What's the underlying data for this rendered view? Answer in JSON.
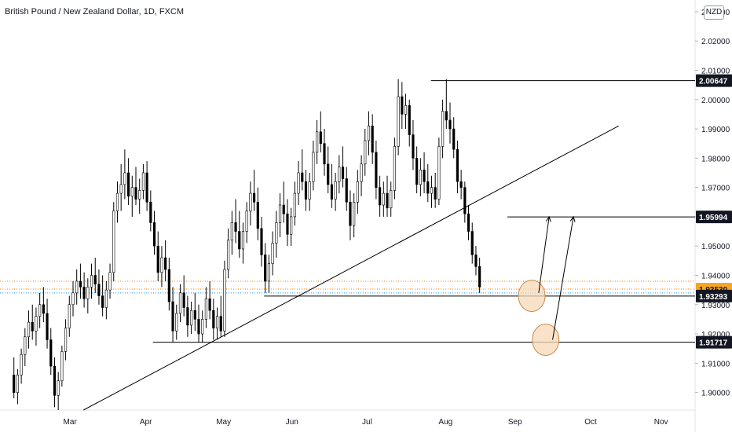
{
  "header": {
    "title": "British Pound / New Zealand Dollar, 1D, FXCM",
    "currency": "NZD"
  },
  "chart_data": {
    "type": "candlestick",
    "title": "British Pound / New Zealand Dollar, 1D, FXCM",
    "y_axis": {
      "range": [
        1.894,
        2.034
      ],
      "ticks": [
        "1.90000",
        "1.91000",
        "1.92000",
        "1.93000",
        "1.94000",
        "1.95000",
        "1.96000",
        "1.97000",
        "1.98000",
        "1.99000",
        "2.00000",
        "2.01000",
        "2.02000",
        "2.03000"
      ],
      "tick_values": [
        1.9,
        1.91,
        1.92,
        1.93,
        1.94,
        1.95,
        1.96,
        1.97,
        1.98,
        1.99,
        2.0,
        2.01,
        2.02,
        2.03
      ]
    },
    "x_axis": {
      "months": [
        "Mar",
        "Apr",
        "May",
        "Jun",
        "Jul",
        "Aug",
        "Sep",
        "Oct",
        "Nov"
      ],
      "month_positions": [
        0.1,
        0.21,
        0.32,
        0.42,
        0.53,
        0.64,
        0.74,
        0.85,
        0.95
      ]
    },
    "price_labels": [
      {
        "text": "2.00647",
        "value": 2.00647,
        "style": "dark"
      },
      {
        "text": "1.95994",
        "value": 1.95994,
        "style": "dark"
      },
      {
        "text": "1.93530",
        "value": 1.9353,
        "style": "orange"
      },
      {
        "text": "1.93293",
        "value": 1.93293,
        "style": "dark"
      },
      {
        "text": "1.91717",
        "value": 1.91717,
        "style": "dark"
      }
    ],
    "levels": [
      {
        "value": 2.00647,
        "x_start": 0.62,
        "x_end": 1.0
      },
      {
        "value": 1.95994,
        "x_start": 0.73,
        "x_end": 1.0
      },
      {
        "value": 1.93293,
        "x_start": 0.38,
        "x_end": 1.0
      },
      {
        "value": 1.91717,
        "x_start": 0.22,
        "x_end": 1.0
      }
    ],
    "dotted_levels": [
      {
        "value": 1.938,
        "color": "#f57c00"
      },
      {
        "value": 1.9353,
        "color": "#f57c00"
      },
      {
        "value": 1.934,
        "color": "#2196f3"
      }
    ],
    "trendline": {
      "x1": 0.12,
      "y1": 1.894,
      "x2": 0.89,
      "y2": 1.991
    },
    "arrows": [
      {
        "x1": 0.775,
        "y1": 1.934,
        "x2": 0.79,
        "y2": 1.96
      },
      {
        "x1": 0.795,
        "y1": 1.918,
        "x2": 0.825,
        "y2": 1.96
      }
    ],
    "circles": [
      {
        "cx": 0.765,
        "cy": 1.933
      },
      {
        "cx": 0.785,
        "cy": 1.918
      }
    ],
    "candles": [
      [
        1.906,
        1.912,
        1.898,
        1.9
      ],
      [
        1.9,
        1.908,
        1.896,
        1.906
      ],
      [
        1.906,
        1.915,
        1.903,
        1.913
      ],
      [
        1.913,
        1.922,
        1.909,
        1.919
      ],
      [
        1.919,
        1.928,
        1.915,
        1.924
      ],
      [
        1.924,
        1.93,
        1.918,
        1.921
      ],
      [
        1.921,
        1.929,
        1.916,
        1.926
      ],
      [
        1.926,
        1.934,
        1.922,
        1.93
      ],
      [
        1.93,
        1.936,
        1.924,
        1.927
      ],
      [
        1.927,
        1.932,
        1.915,
        1.918
      ],
      [
        1.918,
        1.922,
        1.906,
        1.909
      ],
      [
        1.909,
        1.912,
        1.895,
        1.899
      ],
      [
        1.899,
        1.907,
        1.894,
        1.904
      ],
      [
        1.904,
        1.916,
        1.902,
        1.914
      ],
      [
        1.914,
        1.925,
        1.911,
        1.922
      ],
      [
        1.922,
        1.933,
        1.919,
        1.93
      ],
      [
        1.93,
        1.938,
        1.926,
        1.934
      ],
      [
        1.934,
        1.942,
        1.93,
        1.938
      ],
      [
        1.938,
        1.944,
        1.932,
        1.936
      ],
      [
        1.936,
        1.941,
        1.929,
        1.932
      ],
      [
        1.932,
        1.939,
        1.927,
        1.936
      ],
      [
        1.936,
        1.944,
        1.932,
        1.94
      ],
      [
        1.94,
        1.946,
        1.934,
        1.937
      ],
      [
        1.937,
        1.942,
        1.93,
        1.933
      ],
      [
        1.933,
        1.94,
        1.926,
        1.929
      ],
      [
        1.929,
        1.938,
        1.925,
        1.935
      ],
      [
        1.935,
        1.944,
        1.932,
        1.941
      ],
      [
        1.941,
        1.965,
        1.938,
        1.962
      ],
      [
        1.962,
        1.972,
        1.958,
        1.968
      ],
      [
        1.968,
        1.978,
        1.962,
        1.971
      ],
      [
        1.971,
        1.983,
        1.966,
        1.975
      ],
      [
        1.975,
        1.98,
        1.964,
        1.967
      ],
      [
        1.967,
        1.974,
        1.96,
        1.97
      ],
      [
        1.97,
        1.977,
        1.964,
        1.966
      ],
      [
        1.966,
        1.973,
        1.961,
        1.969
      ],
      [
        1.969,
        1.978,
        1.966,
        1.975
      ],
      [
        1.975,
        1.979,
        1.962,
        1.965
      ],
      [
        1.965,
        1.969,
        1.955,
        1.958
      ],
      [
        1.958,
        1.962,
        1.947,
        1.95
      ],
      [
        1.95,
        1.955,
        1.938,
        1.941
      ],
      [
        1.941,
        1.95,
        1.936,
        1.946
      ],
      [
        1.946,
        1.952,
        1.938,
        1.942
      ],
      [
        1.942,
        1.946,
        1.928,
        1.931
      ],
      [
        1.931,
        1.936,
        1.917,
        1.921
      ],
      [
        1.921,
        1.93,
        1.918,
        1.927
      ],
      [
        1.927,
        1.937,
        1.924,
        1.934
      ],
      [
        1.934,
        1.94,
        1.926,
        1.929
      ],
      [
        1.929,
        1.933,
        1.919,
        1.923
      ],
      [
        1.923,
        1.931,
        1.92,
        1.928
      ],
      [
        1.928,
        1.934,
        1.921,
        1.925
      ],
      [
        1.925,
        1.93,
        1.917,
        1.92
      ],
      [
        1.92,
        1.928,
        1.917,
        1.925
      ],
      [
        1.925,
        1.936,
        1.922,
        1.932
      ],
      [
        1.932,
        1.938,
        1.925,
        1.928
      ],
      [
        1.928,
        1.932,
        1.918,
        1.922
      ],
      [
        1.922,
        1.929,
        1.918,
        1.926
      ],
      [
        1.926,
        1.933,
        1.919,
        1.921
      ],
      [
        1.921,
        1.945,
        1.919,
        1.942
      ],
      [
        1.942,
        1.956,
        1.939,
        1.952
      ],
      [
        1.952,
        1.962,
        1.947,
        1.958
      ],
      [
        1.958,
        1.966,
        1.951,
        1.955
      ],
      [
        1.955,
        1.962,
        1.946,
        1.949
      ],
      [
        1.949,
        1.958,
        1.944,
        1.955
      ],
      [
        1.955,
        1.965,
        1.951,
        1.962
      ],
      [
        1.962,
        1.972,
        1.957,
        1.968
      ],
      [
        1.968,
        1.976,
        1.962,
        1.965
      ],
      [
        1.965,
        1.97,
        1.952,
        1.956
      ],
      [
        1.956,
        1.96,
        1.943,
        1.947
      ],
      [
        1.947,
        1.951,
        1.934,
        1.938
      ],
      [
        1.938,
        1.947,
        1.934,
        1.944
      ],
      [
        1.944,
        1.955,
        1.94,
        1.951
      ],
      [
        1.951,
        1.962,
        1.946,
        1.958
      ],
      [
        1.958,
        1.968,
        1.953,
        1.964
      ],
      [
        1.964,
        1.972,
        1.958,
        1.961
      ],
      [
        1.961,
        1.966,
        1.95,
        1.954
      ],
      [
        1.954,
        1.963,
        1.95,
        1.96
      ],
      [
        1.96,
        1.972,
        1.957,
        1.968
      ],
      [
        1.968,
        1.979,
        1.964,
        1.975
      ],
      [
        1.975,
        1.983,
        1.969,
        1.972
      ],
      [
        1.972,
        1.976,
        1.962,
        1.966
      ],
      [
        1.966,
        1.975,
        1.962,
        1.972
      ],
      [
        1.972,
        1.986,
        1.969,
        1.982
      ],
      [
        1.982,
        1.993,
        1.978,
        1.989
      ],
      [
        1.989,
        1.996,
        1.982,
        1.985
      ],
      [
        1.985,
        1.99,
        1.974,
        1.978
      ],
      [
        1.978,
        1.984,
        1.968,
        1.971
      ],
      [
        1.971,
        1.978,
        1.963,
        1.966
      ],
      [
        1.966,
        1.975,
        1.962,
        1.972
      ],
      [
        1.972,
        1.981,
        1.968,
        1.977
      ],
      [
        1.977,
        1.984,
        1.97,
        1.973
      ],
      [
        1.973,
        1.977,
        1.962,
        1.965
      ],
      [
        1.965,
        1.969,
        1.952,
        1.957
      ],
      [
        1.957,
        1.968,
        1.953,
        1.965
      ],
      [
        1.965,
        1.976,
        1.961,
        1.972
      ],
      [
        1.972,
        1.981,
        1.967,
        1.978
      ],
      [
        1.978,
        1.99,
        1.974,
        1.986
      ],
      [
        1.986,
        1.996,
        1.981,
        1.991
      ],
      [
        1.991,
        1.995,
        1.978,
        1.982
      ],
      [
        1.982,
        1.986,
        1.966,
        1.97
      ],
      [
        1.97,
        1.974,
        1.96,
        1.964
      ],
      [
        1.964,
        1.972,
        1.96,
        1.968
      ],
      [
        1.968,
        1.974,
        1.96,
        1.963
      ],
      [
        1.963,
        1.972,
        1.96,
        1.969
      ],
      [
        1.969,
        1.987,
        1.966,
        1.984
      ],
      [
        1.984,
        2.007,
        1.981,
        2.001
      ],
      [
        2.001,
        2.006,
        1.99,
        1.995
      ],
      [
        1.995,
        2.002,
        1.99,
        1.998
      ],
      [
        1.998,
        2.0,
        1.984,
        1.988
      ],
      [
        1.988,
        1.993,
        1.976,
        1.98
      ],
      [
        1.98,
        1.984,
        1.968,
        1.971
      ],
      [
        1.971,
        1.98,
        1.967,
        1.976
      ],
      [
        1.976,
        1.982,
        1.968,
        1.972
      ],
      [
        1.972,
        1.978,
        1.965,
        1.968
      ],
      [
        1.968,
        1.974,
        1.963,
        1.97
      ],
      [
        1.97,
        1.975,
        1.963,
        1.966
      ],
      [
        1.966,
        1.987,
        1.964,
        1.984
      ],
      [
        1.984,
        2.0,
        1.98,
        1.996
      ],
      [
        1.996,
        2.007,
        1.99,
        1.993
      ],
      [
        1.993,
        1.999,
        1.985,
        1.99
      ],
      [
        1.99,
        1.994,
        1.98,
        1.983
      ],
      [
        1.983,
        1.986,
        1.968,
        1.972
      ],
      [
        1.972,
        1.976,
        1.966,
        1.97
      ],
      [
        1.97,
        1.972,
        1.958,
        1.961
      ],
      [
        1.961,
        1.964,
        1.952,
        1.955
      ],
      [
        1.955,
        1.958,
        1.944,
        1.947
      ],
      [
        1.947,
        1.95,
        1.94,
        1.943
      ],
      [
        1.943,
        1.946,
        1.934,
        1.936
      ]
    ]
  }
}
